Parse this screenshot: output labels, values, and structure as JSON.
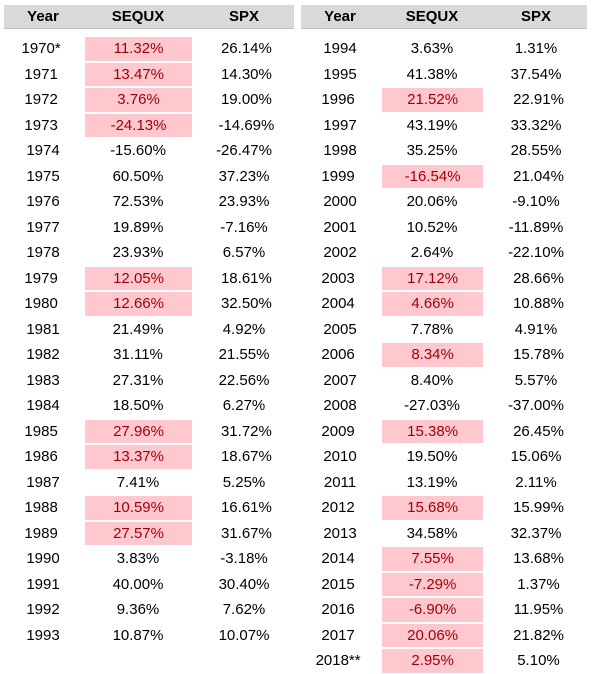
{
  "headers": {
    "year": "Year",
    "sequx": "SEQUX",
    "spx": "SPX"
  },
  "highlight_color": "#ffc7ce",
  "highlight_text_color": "#9c0006",
  "left_rows": [
    {
      "year": "1970*",
      "sequx": "11.32%",
      "spx": "26.14%",
      "highlight": true
    },
    {
      "year": "1971",
      "sequx": "13.47%",
      "spx": "14.30%",
      "highlight": true
    },
    {
      "year": "1972",
      "sequx": "3.76%",
      "spx": "19.00%",
      "highlight": true
    },
    {
      "year": "1973",
      "sequx": "-24.13%",
      "spx": "-14.69%",
      "highlight": true
    },
    {
      "year": "1974",
      "sequx": "-15.60%",
      "spx": "-26.47%",
      "highlight": false
    },
    {
      "year": "1975",
      "sequx": "60.50%",
      "spx": "37.23%",
      "highlight": false
    },
    {
      "year": "1976",
      "sequx": "72.53%",
      "spx": "23.93%",
      "highlight": false
    },
    {
      "year": "1977",
      "sequx": "19.89%",
      "spx": "-7.16%",
      "highlight": false
    },
    {
      "year": "1978",
      "sequx": "23.93%",
      "spx": "6.57%",
      "highlight": false
    },
    {
      "year": "1979",
      "sequx": "12.05%",
      "spx": "18.61%",
      "highlight": true
    },
    {
      "year": "1980",
      "sequx": "12.66%",
      "spx": "32.50%",
      "highlight": true
    },
    {
      "year": "1981",
      "sequx": "21.49%",
      "spx": "4.92%",
      "highlight": false
    },
    {
      "year": "1982",
      "sequx": "31.11%",
      "spx": "21.55%",
      "highlight": false
    },
    {
      "year": "1983",
      "sequx": "27.31%",
      "spx": "22.56%",
      "highlight": false
    },
    {
      "year": "1984",
      "sequx": "18.50%",
      "spx": "6.27%",
      "highlight": false
    },
    {
      "year": "1985",
      "sequx": "27.96%",
      "spx": "31.72%",
      "highlight": true
    },
    {
      "year": "1986",
      "sequx": "13.37%",
      "spx": "18.67%",
      "highlight": true
    },
    {
      "year": "1987",
      "sequx": "7.41%",
      "spx": "5.25%",
      "highlight": false
    },
    {
      "year": "1988",
      "sequx": "10.59%",
      "spx": "16.61%",
      "highlight": true
    },
    {
      "year": "1989",
      "sequx": "27.57%",
      "spx": "31.67%",
      "highlight": true
    },
    {
      "year": "1990",
      "sequx": "3.83%",
      "spx": "-3.18%",
      "highlight": false
    },
    {
      "year": "1991",
      "sequx": "40.00%",
      "spx": "30.40%",
      "highlight": false
    },
    {
      "year": "1992",
      "sequx": "9.36%",
      "spx": "7.62%",
      "highlight": false
    },
    {
      "year": "1993",
      "sequx": "10.87%",
      "spx": "10.07%",
      "highlight": false
    }
  ],
  "right_rows": [
    {
      "year": "1994",
      "sequx": "3.63%",
      "spx": "1.31%",
      "highlight": false
    },
    {
      "year": "1995",
      "sequx": "41.38%",
      "spx": "37.54%",
      "highlight": false
    },
    {
      "year": "1996",
      "sequx": "21.52%",
      "spx": "22.91%",
      "highlight": true
    },
    {
      "year": "1997",
      "sequx": "43.19%",
      "spx": "33.32%",
      "highlight": false
    },
    {
      "year": "1998",
      "sequx": "35.25%",
      "spx": "28.55%",
      "highlight": false
    },
    {
      "year": "1999",
      "sequx": "-16.54%",
      "spx": "21.04%",
      "highlight": true
    },
    {
      "year": "2000",
      "sequx": "20.06%",
      "spx": "-9.10%",
      "highlight": false
    },
    {
      "year": "2001",
      "sequx": "10.52%",
      "spx": "-11.89%",
      "highlight": false
    },
    {
      "year": "2002",
      "sequx": "2.64%",
      "spx": "-22.10%",
      "highlight": false
    },
    {
      "year": "2003",
      "sequx": "17.12%",
      "spx": "28.66%",
      "highlight": true
    },
    {
      "year": "2004",
      "sequx": "4.66%",
      "spx": "10.88%",
      "highlight": true
    },
    {
      "year": "2005",
      "sequx": "7.78%",
      "spx": "4.91%",
      "highlight": false
    },
    {
      "year": "2006",
      "sequx": "8.34%",
      "spx": "15.78%",
      "highlight": true
    },
    {
      "year": "2007",
      "sequx": "8.40%",
      "spx": "5.57%",
      "highlight": false
    },
    {
      "year": "2008",
      "sequx": "-27.03%",
      "spx": "-37.00%",
      "highlight": false
    },
    {
      "year": "2009",
      "sequx": "15.38%",
      "spx": "26.45%",
      "highlight": true
    },
    {
      "year": "2010",
      "sequx": "19.50%",
      "spx": "15.06%",
      "highlight": false
    },
    {
      "year": "2011",
      "sequx": "13.19%",
      "spx": "2.11%",
      "highlight": false
    },
    {
      "year": "2012",
      "sequx": "15.68%",
      "spx": "15.99%",
      "highlight": true
    },
    {
      "year": "2013",
      "sequx": "34.58%",
      "spx": "32.37%",
      "highlight": false
    },
    {
      "year": "2014",
      "sequx": "7.55%",
      "spx": "13.68%",
      "highlight": true
    },
    {
      "year": "2015",
      "sequx": "-7.29%",
      "spx": "1.37%",
      "highlight": true
    },
    {
      "year": "2016",
      "sequx": "-6.90%",
      "spx": "11.95%",
      "highlight": true
    },
    {
      "year": "2017",
      "sequx": "20.06%",
      "spx": "21.82%",
      "highlight": true
    },
    {
      "year": "2018**",
      "sequx": "2.95%",
      "spx": "5.10%",
      "highlight": true
    }
  ]
}
